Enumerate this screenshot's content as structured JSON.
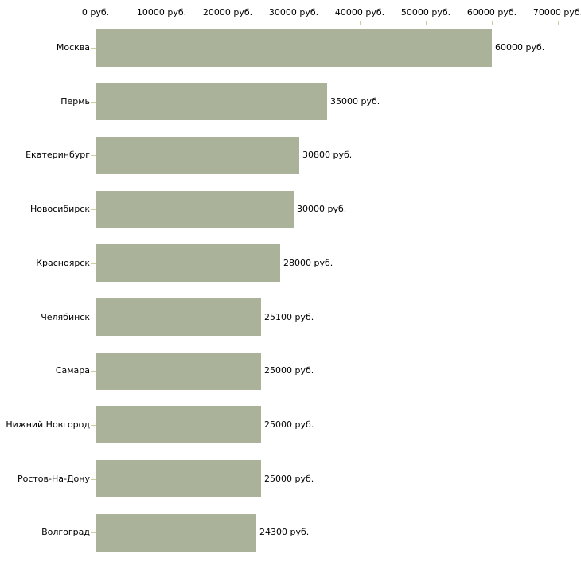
{
  "chart_data": {
    "type": "bar",
    "orientation": "horizontal",
    "title": "",
    "xlabel": "",
    "ylabel": "",
    "categories": [
      "Москва",
      "Пермь",
      "Екатеринбург",
      "Новосибирск",
      "Красноярск",
      "Челябинск",
      "Самара",
      "Нижний Новгород",
      "Ростов-На-Дону",
      "Волгоград"
    ],
    "values": [
      60000,
      35000,
      30800,
      30000,
      28000,
      25100,
      25000,
      25000,
      25000,
      24300
    ],
    "value_labels": [
      "60000 руб.",
      "35000 руб.",
      "30800 руб.",
      "30000 руб.",
      "28000 руб.",
      "25100 руб.",
      "25000 руб.",
      "25000 руб.",
      "25000 руб.",
      "24300 руб."
    ],
    "x_ticks": [
      0,
      10000,
      20000,
      30000,
      40000,
      50000,
      60000,
      70000
    ],
    "x_tick_labels": [
      "0 руб.",
      "10000 руб.",
      "20000 руб.",
      "30000 руб.",
      "40000 руб.",
      "50000 руб.",
      "60000 руб.",
      "70000 руб."
    ],
    "xlim": [
      0,
      70000
    ],
    "axis_position": "top",
    "grid": false,
    "legend": false,
    "colors": {
      "bar": "#aab399",
      "axis_line": "#bdbdbd",
      "tick": "#cdcd9d",
      "text": "#000000",
      "background": "#ffffff"
    }
  }
}
